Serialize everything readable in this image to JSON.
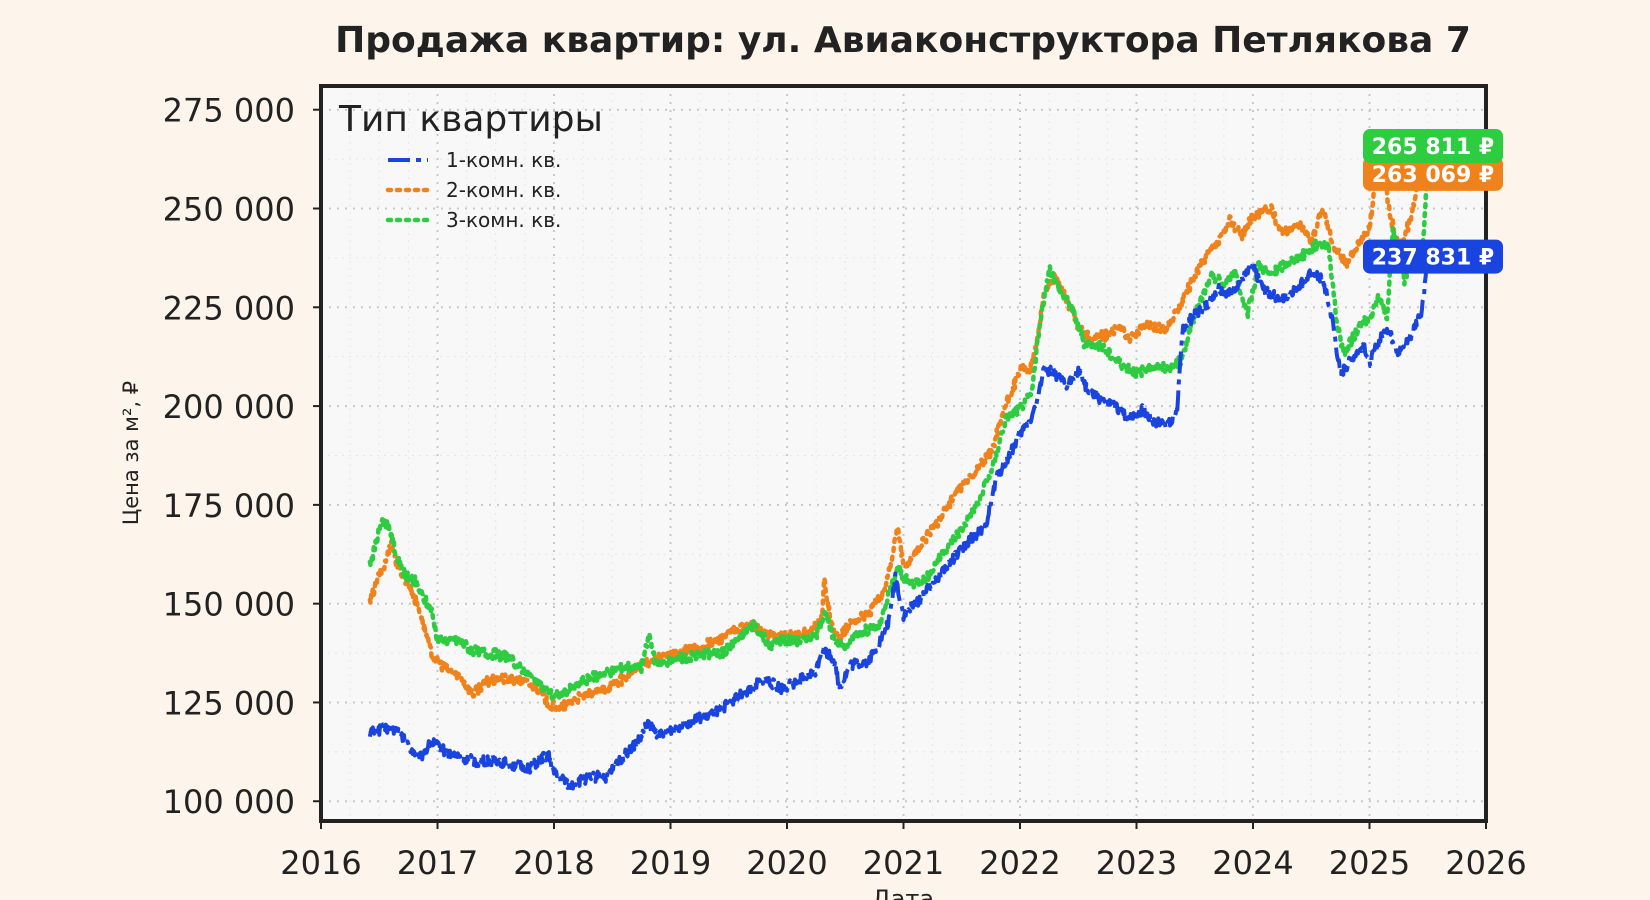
{
  "chart_data": {
    "type": "line",
    "title": "Продажа квартир: ул. Авиаконструктора Петлякова 7",
    "xlabel": "Дата",
    "ylabel": "Цена за м², ₽",
    "xlim": [
      2016.0,
      2026.0
    ],
    "ylim": [
      95000,
      281000
    ],
    "x_ticks": [
      "2016",
      "2017",
      "2018",
      "2019",
      "2020",
      "2021",
      "2022",
      "2023",
      "2024",
      "2025",
      "2026"
    ],
    "y_ticks": [
      "100 000",
      "125 000",
      "150 000",
      "175 000",
      "200 000",
      "225 000",
      "250 000",
      "275 000"
    ],
    "grid": true,
    "legend": {
      "title": "Тип квартиры",
      "position": "top-left"
    },
    "series": [
      {
        "name": "1-комн. кв.",
        "color": "#1a44e0",
        "style": "dashdot",
        "end_label": "237 831 ₽",
        "points": [
          [
            2016.42,
            117500
          ],
          [
            2016.55,
            118500
          ],
          [
            2016.65,
            118000
          ],
          [
            2016.75,
            114000
          ],
          [
            2016.85,
            111000
          ],
          [
            2016.95,
            115000
          ],
          [
            2017.05,
            113000
          ],
          [
            2017.2,
            111000
          ],
          [
            2017.35,
            110000
          ],
          [
            2017.5,
            110500
          ],
          [
            2017.65,
            109000
          ],
          [
            2017.8,
            108500
          ],
          [
            2017.95,
            112000
          ],
          [
            2018.0,
            107000
          ],
          [
            2018.15,
            104000
          ],
          [
            2018.25,
            105500
          ],
          [
            2018.4,
            106500
          ],
          [
            2018.45,
            106000
          ],
          [
            2018.55,
            110000
          ],
          [
            2018.65,
            113000
          ],
          [
            2018.75,
            116000
          ],
          [
            2018.8,
            120000
          ],
          [
            2018.9,
            116500
          ],
          [
            2019.0,
            118000
          ],
          [
            2019.2,
            120500
          ],
          [
            2019.4,
            122500
          ],
          [
            2019.55,
            126000
          ],
          [
            2019.7,
            128500
          ],
          [
            2019.8,
            131000
          ],
          [
            2019.95,
            128500
          ],
          [
            2020.1,
            130500
          ],
          [
            2020.25,
            133000
          ],
          [
            2020.3,
            139000
          ],
          [
            2020.4,
            136000
          ],
          [
            2020.45,
            129000
          ],
          [
            2020.55,
            134500
          ],
          [
            2020.7,
            135500
          ],
          [
            2020.8,
            140500
          ],
          [
            2020.88,
            146000
          ],
          [
            2020.93,
            157000
          ],
          [
            2021.0,
            147000
          ],
          [
            2021.15,
            151500
          ],
          [
            2021.3,
            157000
          ],
          [
            2021.45,
            162000
          ],
          [
            2021.6,
            167000
          ],
          [
            2021.7,
            169000
          ],
          [
            2021.8,
            182000
          ],
          [
            2021.9,
            187000
          ],
          [
            2022.0,
            193000
          ],
          [
            2022.08,
            196000
          ],
          [
            2022.15,
            201000
          ],
          [
            2022.2,
            210000
          ],
          [
            2022.3,
            208000
          ],
          [
            2022.4,
            205000
          ],
          [
            2022.5,
            209000
          ],
          [
            2022.6,
            203000
          ],
          [
            2022.8,
            200000
          ],
          [
            2022.95,
            197000
          ],
          [
            2023.05,
            199000
          ],
          [
            2023.15,
            196000
          ],
          [
            2023.3,
            195500
          ],
          [
            2023.35,
            200000
          ],
          [
            2023.4,
            220000
          ],
          [
            2023.5,
            223000
          ],
          [
            2023.6,
            225500
          ],
          [
            2023.7,
            230000
          ],
          [
            2023.8,
            228500
          ],
          [
            2023.9,
            232000
          ],
          [
            2024.0,
            235000
          ],
          [
            2024.1,
            229000
          ],
          [
            2024.25,
            227000
          ],
          [
            2024.35,
            229500
          ],
          [
            2024.5,
            233500
          ],
          [
            2024.6,
            232000
          ],
          [
            2024.68,
            222000
          ],
          [
            2024.75,
            208000
          ],
          [
            2024.85,
            212000
          ],
          [
            2024.95,
            216000
          ],
          [
            2025.0,
            210500
          ],
          [
            2025.05,
            214500
          ],
          [
            2025.15,
            220000
          ],
          [
            2025.25,
            213500
          ],
          [
            2025.35,
            217500
          ],
          [
            2025.45,
            224500
          ],
          [
            2025.5,
            237831
          ]
        ]
      },
      {
        "name": "2-комн. кв.",
        "color": "#f0821c",
        "style": "dotted",
        "end_label": "263 069 ₽",
        "points": [
          [
            2016.42,
            150000
          ],
          [
            2016.48,
            156000
          ],
          [
            2016.55,
            160000
          ],
          [
            2016.6,
            166000
          ],
          [
            2016.65,
            160000
          ],
          [
            2016.75,
            155000
          ],
          [
            2016.85,
            148000
          ],
          [
            2016.95,
            137000
          ],
          [
            2017.05,
            134000
          ],
          [
            2017.2,
            131500
          ],
          [
            2017.3,
            127000
          ],
          [
            2017.4,
            130000
          ],
          [
            2017.55,
            131000
          ],
          [
            2017.7,
            130500
          ],
          [
            2017.85,
            129000
          ],
          [
            2017.95,
            124500
          ],
          [
            2018.05,
            123500
          ],
          [
            2018.2,
            126000
          ],
          [
            2018.4,
            128000
          ],
          [
            2018.6,
            131000
          ],
          [
            2018.75,
            134500
          ],
          [
            2018.85,
            135500
          ],
          [
            2019.0,
            137000
          ],
          [
            2019.2,
            138500
          ],
          [
            2019.4,
            140500
          ],
          [
            2019.55,
            143000
          ],
          [
            2019.7,
            144500
          ],
          [
            2019.85,
            142000
          ],
          [
            2020.0,
            141500
          ],
          [
            2020.2,
            143000
          ],
          [
            2020.3,
            146000
          ],
          [
            2020.32,
            156000
          ],
          [
            2020.38,
            145000
          ],
          [
            2020.45,
            141000
          ],
          [
            2020.55,
            145500
          ],
          [
            2020.7,
            147500
          ],
          [
            2020.82,
            152500
          ],
          [
            2020.9,
            161000
          ],
          [
            2020.95,
            170000
          ],
          [
            2021.0,
            159000
          ],
          [
            2021.15,
            165000
          ],
          [
            2021.3,
            171000
          ],
          [
            2021.45,
            178000
          ],
          [
            2021.6,
            183000
          ],
          [
            2021.75,
            188000
          ],
          [
            2021.85,
            198000
          ],
          [
            2022.0,
            209000
          ],
          [
            2022.1,
            210000
          ],
          [
            2022.15,
            217000
          ],
          [
            2022.2,
            228000
          ],
          [
            2022.3,
            233000
          ],
          [
            2022.4,
            227000
          ],
          [
            2022.5,
            220000
          ],
          [
            2022.6,
            217000
          ],
          [
            2022.75,
            218000
          ],
          [
            2022.85,
            220000
          ],
          [
            2022.95,
            217000
          ],
          [
            2023.1,
            221000
          ],
          [
            2023.25,
            219000
          ],
          [
            2023.35,
            224000
          ],
          [
            2023.5,
            233000
          ],
          [
            2023.6,
            238000
          ],
          [
            2023.7,
            241000
          ],
          [
            2023.8,
            247000
          ],
          [
            2023.9,
            243000
          ],
          [
            2024.0,
            248000
          ],
          [
            2024.15,
            250000
          ],
          [
            2024.25,
            244000
          ],
          [
            2024.4,
            246000
          ],
          [
            2024.5,
            242000
          ],
          [
            2024.6,
            250000
          ],
          [
            2024.7,
            240000
          ],
          [
            2024.8,
            236000
          ],
          [
            2024.9,
            241000
          ],
          [
            2025.0,
            245000
          ],
          [
            2025.05,
            257000
          ],
          [
            2025.1,
            262000
          ],
          [
            2025.18,
            248000
          ],
          [
            2025.25,
            240000
          ],
          [
            2025.35,
            247000
          ],
          [
            2025.45,
            262000
          ],
          [
            2025.5,
            263069
          ]
        ]
      },
      {
        "name": "3-комн. кв.",
        "color": "#2ecc40",
        "style": "dotted",
        "end_label": "265 811 ₽",
        "points": [
          [
            2016.42,
            160000
          ],
          [
            2016.48,
            166000
          ],
          [
            2016.52,
            171000
          ],
          [
            2016.58,
            170000
          ],
          [
            2016.65,
            162000
          ],
          [
            2016.72,
            157000
          ],
          [
            2016.8,
            156000
          ],
          [
            2016.85,
            153000
          ],
          [
            2016.95,
            148000
          ],
          [
            2017.0,
            141000
          ],
          [
            2017.2,
            140500
          ],
          [
            2017.3,
            138000
          ],
          [
            2017.45,
            137500
          ],
          [
            2017.6,
            136500
          ],
          [
            2017.75,
            133000
          ],
          [
            2017.9,
            129000
          ],
          [
            2018.0,
            126500
          ],
          [
            2018.1,
            127500
          ],
          [
            2018.25,
            130500
          ],
          [
            2018.45,
            132500
          ],
          [
            2018.6,
            134000
          ],
          [
            2018.75,
            134000
          ],
          [
            2018.82,
            142000
          ],
          [
            2018.87,
            134500
          ],
          [
            2019.05,
            136000
          ],
          [
            2019.25,
            137000
          ],
          [
            2019.45,
            137500
          ],
          [
            2019.6,
            141500
          ],
          [
            2019.72,
            145000
          ],
          [
            2019.85,
            139000
          ],
          [
            2019.95,
            141000
          ],
          [
            2020.1,
            140500
          ],
          [
            2020.25,
            142000
          ],
          [
            2020.32,
            148000
          ],
          [
            2020.4,
            141000
          ],
          [
            2020.5,
            139000
          ],
          [
            2020.6,
            142500
          ],
          [
            2020.8,
            144500
          ],
          [
            2020.9,
            155000
          ],
          [
            2020.95,
            159000
          ],
          [
            2021.05,
            155000
          ],
          [
            2021.2,
            156500
          ],
          [
            2021.35,
            163500
          ],
          [
            2021.5,
            169000
          ],
          [
            2021.65,
            176000
          ],
          [
            2021.78,
            186000
          ],
          [
            2021.88,
            197000
          ],
          [
            2022.0,
            199500
          ],
          [
            2022.1,
            203000
          ],
          [
            2022.15,
            216000
          ],
          [
            2022.2,
            226000
          ],
          [
            2022.25,
            235000
          ],
          [
            2022.35,
            229000
          ],
          [
            2022.45,
            224500
          ],
          [
            2022.55,
            216000
          ],
          [
            2022.7,
            215000
          ],
          [
            2022.85,
            211000
          ],
          [
            2023.0,
            208500
          ],
          [
            2023.15,
            210000
          ],
          [
            2023.3,
            209500
          ],
          [
            2023.4,
            212000
          ],
          [
            2023.45,
            219000
          ],
          [
            2023.55,
            226500
          ],
          [
            2023.65,
            233000
          ],
          [
            2023.75,
            231000
          ],
          [
            2023.85,
            234000
          ],
          [
            2023.95,
            223000
          ],
          [
            2024.05,
            236000
          ],
          [
            2024.15,
            233000
          ],
          [
            2024.3,
            236500
          ],
          [
            2024.45,
            238500
          ],
          [
            2024.55,
            241000
          ],
          [
            2024.65,
            240500
          ],
          [
            2024.72,
            221000
          ],
          [
            2024.78,
            213000
          ],
          [
            2024.85,
            217000
          ],
          [
            2024.95,
            222000
          ],
          [
            2025.0,
            221000
          ],
          [
            2025.08,
            228000
          ],
          [
            2025.15,
            222000
          ],
          [
            2025.2,
            245000
          ],
          [
            2025.3,
            232000
          ],
          [
            2025.4,
            241000
          ],
          [
            2025.45,
            236000
          ],
          [
            2025.48,
            250000
          ],
          [
            2025.5,
            265811
          ]
        ]
      }
    ]
  }
}
